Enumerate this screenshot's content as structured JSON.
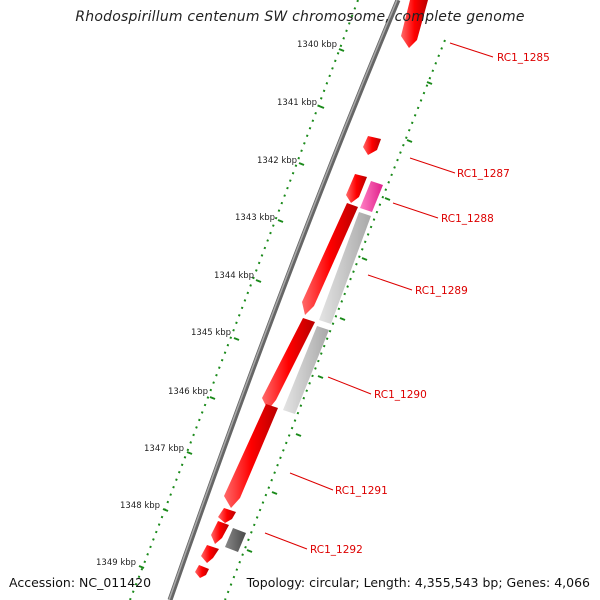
{
  "title": "Rhodospirillum centenum SW chromosome, complete genome",
  "accession": "Accession: NC_011420",
  "topology": "Topology: circular; Length: 4,355,543 bp; Genes: 4,066",
  "ticks": [
    {
      "label": "1340 kbp"
    },
    {
      "label": "1341 kbp"
    },
    {
      "label": "1342 kbp"
    },
    {
      "label": "1343 kbp"
    },
    {
      "label": "1344 kbp"
    },
    {
      "label": "1345 kbp"
    },
    {
      "label": "1346 kbp"
    },
    {
      "label": "1347 kbp"
    },
    {
      "label": "1348 kbp"
    },
    {
      "label": "1349 kbp"
    }
  ],
  "gene_labels": [
    {
      "name": "RC1_1285"
    },
    {
      "name": "RC1_1287"
    },
    {
      "name": "RC1_1288"
    },
    {
      "name": "RC1_1289"
    },
    {
      "name": "RC1_1290"
    },
    {
      "name": "RC1_1291"
    },
    {
      "name": "RC1_1292"
    }
  ],
  "colors": {
    "forward_gene": "#ff0000",
    "highlight_gene": "#ff2aa0",
    "pseudo_gene": "#c8c8c8",
    "dark_gene": "#666666",
    "backbone": "#777777",
    "ruler": "#1a8a1a",
    "label": "#dd0000"
  }
}
